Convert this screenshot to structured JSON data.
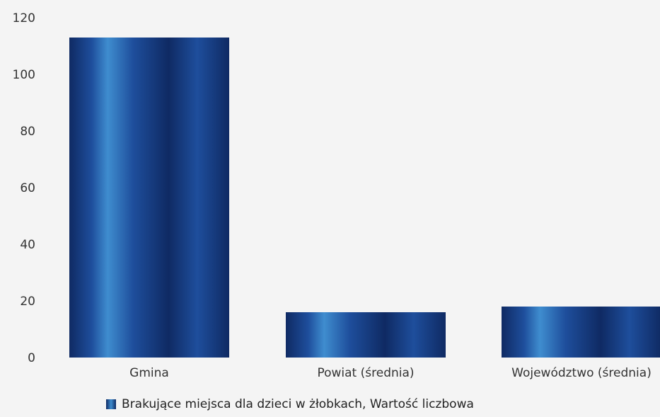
{
  "chart_data": {
    "type": "bar",
    "categories": [
      "Gmina",
      "Powiat (średnia)",
      "Województwo (średnia)"
    ],
    "series": [
      {
        "name": "Brakujące miejsca dla dzieci w żłobkach, Wartość liczbowa",
        "values": [
          113,
          16,
          18
        ]
      }
    ],
    "ylim": [
      0,
      120
    ],
    "yticks": [
      0,
      20,
      40,
      60,
      80,
      100,
      120
    ],
    "grid": false,
    "legend_position": "bottom",
    "colors": {
      "bar_dark": "#0f2a63",
      "bar_mid": "#1e4e9c",
      "bar_light": "#3f8dcf",
      "tick_text": "#333333"
    }
  }
}
